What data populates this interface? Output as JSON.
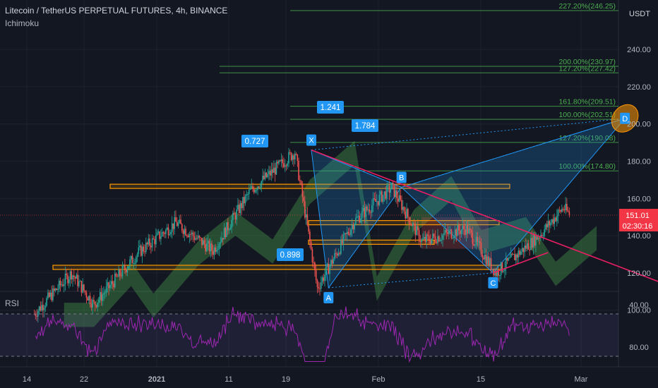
{
  "header": {
    "title": "Litecoin / TetherUS PERPETUAL FUTURES, 4h, BINANCE",
    "indicator": "Ichimoku",
    "currency": "USDT"
  },
  "rsi_pane": {
    "label": "RSI"
  },
  "colors": {
    "background": "#131722",
    "up_candle": "#26a69a",
    "down_candle": "#ef5350",
    "pattern": "#2196f3",
    "trendline": "#e91e63",
    "zone": "#ff9800",
    "fib": "#4caf50",
    "rsi": "#9c27b0",
    "price_tag": "#f23645"
  },
  "chart_data": {
    "type": "candlestick",
    "price_axis": {
      "min": 95,
      "max": 245,
      "ticks": [
        "100.00",
        "120.00",
        "140.00",
        "160.00",
        "180.00",
        "200.00",
        "220.00",
        "240.00"
      ]
    },
    "rsi_axis": {
      "ticks": [
        "40.00",
        "80.00"
      ],
      "overbought": 70,
      "oversold": 30
    },
    "time_ticks": [
      "14",
      "22",
      "2021",
      "11",
      "19",
      "Feb",
      "15",
      "Mar"
    ],
    "current_price": {
      "value": "151.01",
      "countdown": "02:30:16"
    },
    "price_path": [
      {
        "d": 1,
        "p": 98
      },
      {
        "d": 6,
        "p": 120
      },
      {
        "d": 9,
        "p": 103
      },
      {
        "d": 15,
        "p": 131
      },
      {
        "d": 20,
        "p": 147
      },
      {
        "d": 25,
        "p": 132
      },
      {
        "d": 30,
        "p": 164
      },
      {
        "d": 36,
        "p": 185
      },
      {
        "d": 39,
        "p": 112
      },
      {
        "d": 44,
        "p": 148
      },
      {
        "d": 49,
        "p": 166
      },
      {
        "d": 53,
        "p": 137
      },
      {
        "d": 59,
        "p": 144
      },
      {
        "d": 63,
        "p": 120
      },
      {
        "d": 69,
        "p": 141
      },
      {
        "d": 72,
        "p": 155
      },
      {
        "d": 73,
        "p": 151
      }
    ],
    "harmonic_pattern": {
      "points": [
        {
          "label": "X",
          "d": 38.2,
          "p": 186
        },
        {
          "label": "A",
          "d": 40.5,
          "p": 112
        },
        {
          "label": "B",
          "d": 50.3,
          "p": 166
        },
        {
          "label": "C",
          "d": 62.6,
          "p": 120
        },
        {
          "label": "D",
          "d": 80.3,
          "p": 203
        }
      ],
      "ratios": [
        "0.727",
        "0.898",
        "1.241",
        "1.784"
      ]
    },
    "fib_levels": [
      {
        "label": "227.20%(246.25)",
        "value": 246.25
      },
      {
        "label": "200.00%(230.97)",
        "value": 230.97
      },
      {
        "label": "127.20%(227.42)",
        "value": 227.42
      },
      {
        "label": "161.80%(209.51)",
        "value": 209.51
      },
      {
        "label": "100.00%(202.51)",
        "value": 202.51
      },
      {
        "label": "127.20%(190.08)",
        "value": 190.08
      },
      {
        "label": "100.00%(174.80)",
        "value": 174.8
      }
    ],
    "zones": [
      {
        "p": 166.5
      },
      {
        "p": 147
      },
      {
        "p": 136.5
      },
      {
        "p": 123
      }
    ],
    "trendlines": [
      {
        "d1": 38.2,
        "p1": 186,
        "d2": 89,
        "p2": 109
      },
      {
        "d1": 62.6,
        "p1": 120,
        "d2": 70,
        "p2": 131
      }
    ]
  }
}
